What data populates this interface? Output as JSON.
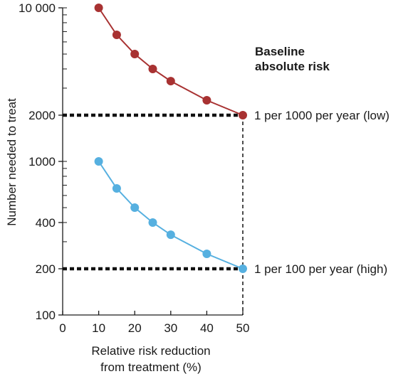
{
  "chart_data": {
    "type": "line",
    "x_scale": "linear",
    "y_scale": "log",
    "xlabel_lines": [
      "Relative risk reduction",
      "from treatment (%)"
    ],
    "ylabel": "Number needed to treat",
    "xlim": [
      0,
      50
    ],
    "ylim": [
      100,
      10000
    ],
    "x_ticks": [
      0,
      10,
      20,
      30,
      40,
      50
    ],
    "x_tick_labels": [
      "0",
      "10",
      "20",
      "30",
      "40",
      "50"
    ],
    "y_tick_labels": [
      {
        "value": 100,
        "label": "100"
      },
      {
        "value": 200,
        "label": "200"
      },
      {
        "value": 400,
        "label": "400"
      },
      {
        "value": 1000,
        "label": "1000"
      },
      {
        "value": 2000,
        "label": "2000"
      },
      {
        "value": 10000,
        "label": "10 000"
      }
    ],
    "y_minor_ticks": [
      100,
      200,
      300,
      400,
      500,
      600,
      700,
      800,
      900,
      1000,
      2000,
      3000,
      4000,
      5000,
      6000,
      7000,
      8000,
      9000,
      10000
    ],
    "legend_title_lines": [
      "Baseline",
      "absolute risk"
    ],
    "grid": false,
    "series": [
      {
        "name": "1 per 1000 per year (low)",
        "color": "#a83232",
        "x": [
          10,
          15,
          20,
          25,
          30,
          40,
          50
        ],
        "y": [
          10000,
          6667,
          5000,
          4000,
          3333,
          2500,
          2000
        ]
      },
      {
        "name": "1 per 100 per year (high)",
        "color": "#56b0e0",
        "x": [
          10,
          15,
          20,
          25,
          30,
          40,
          50
        ],
        "y": [
          1000,
          667,
          500,
          400,
          333,
          250,
          200
        ]
      }
    ],
    "reference_lines": [
      {
        "y": 2000,
        "x_end": 50
      },
      {
        "y": 200,
        "x_end": 50
      }
    ],
    "reference_line_color": "#111111"
  }
}
